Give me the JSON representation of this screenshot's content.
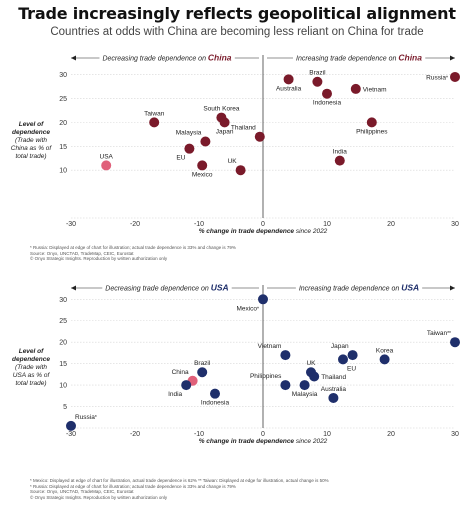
{
  "title": "Trade increasingly reflects geopolitical alignment",
  "subtitle": "Countries at odds with China are becoming less reliant on China for trade",
  "chart_data": [
    {
      "type": "scatter",
      "partner": "China",
      "color": "#7a1a2a",
      "highlight_color": "#e0607a",
      "decreasing_label": "Decreasing trade dependence on ",
      "increasing_label": "Increasing trade dependence on ",
      "xlabel": "% change in trade dependence since 2022",
      "ylabel": [
        "Level of",
        "dependence",
        "(Trade with",
        "China as % of",
        "total trade)"
      ],
      "xlim": [
        -30,
        30
      ],
      "ylim": [
        0,
        32
      ],
      "x_ticks": [
        -30,
        -20,
        -10,
        0,
        10,
        20,
        30
      ],
      "y_ticks": [
        10,
        15,
        20,
        25,
        30
      ],
      "points": [
        {
          "label": "Taiwan",
          "x": -17,
          "y": 20,
          "label_pos": "above"
        },
        {
          "label": "South Korea",
          "x": -6.5,
          "y": 21,
          "label_pos": "above"
        },
        {
          "label": "Malaysia",
          "x": -9,
          "y": 16,
          "label_pos": "above-left"
        },
        {
          "label": "Japan",
          "x": -6,
          "y": 20,
          "label_pos": "below"
        },
        {
          "label": "Thailand",
          "x": -0.5,
          "y": 17,
          "label_pos": "above-left"
        },
        {
          "label": "EU",
          "x": -11.5,
          "y": 14.5,
          "label_pos": "below-left"
        },
        {
          "label": "USA",
          "x": -24.5,
          "y": 11,
          "label_pos": "above",
          "highlight": true
        },
        {
          "label": "Mexico",
          "x": -9.5,
          "y": 11,
          "label_pos": "below"
        },
        {
          "label": "UK",
          "x": -3.5,
          "y": 10,
          "label_pos": "above-left"
        },
        {
          "label": "Australia",
          "x": 4,
          "y": 29,
          "label_pos": "below"
        },
        {
          "label": "Brazil",
          "x": 8.5,
          "y": 28.5,
          "label_pos": "above"
        },
        {
          "label": "Indonesia",
          "x": 10,
          "y": 26,
          "label_pos": "below"
        },
        {
          "label": "Vietnam",
          "x": 14.5,
          "y": 27,
          "label_pos": "right"
        },
        {
          "label": "Russia",
          "x": 30,
          "y": 29.5,
          "label_pos": "left",
          "note_mark": "*"
        },
        {
          "label": "Philippines",
          "x": 17,
          "y": 20,
          "label_pos": "below"
        },
        {
          "label": "India",
          "x": 12,
          "y": 12,
          "label_pos": "above"
        }
      ],
      "footnotes": [
        "* Russia: Displayed at edge of chart for illustration; actual trade dependence is 33% and change is 79%",
        "Source: Onyx, UNCTAD, TradeMap, CEIC, Eurostat",
        "© Onyx Strategic Insights. Reproduction by written authorization only"
      ]
    },
    {
      "type": "scatter",
      "partner": "USA",
      "color": "#1f2f6b",
      "highlight_color": "#e0607a",
      "decreasing_label": "Decreasing trade dependence on ",
      "increasing_label": "Increasing trade dependence on ",
      "xlabel": "% change in trade dependence since 2022",
      "ylabel": [
        "Level of",
        "dependence",
        "(Trade with",
        "USA as % of",
        "total trade)"
      ],
      "xlim": [
        -30,
        30
      ],
      "ylim": [
        0,
        31
      ],
      "x_ticks": [
        -30,
        -20,
        -10,
        0,
        10,
        20,
        30
      ],
      "y_ticks": [
        5,
        10,
        15,
        20,
        25,
        30
      ],
      "points": [
        {
          "label": "Mexico",
          "x": 0,
          "y": 30,
          "label_pos": "below-left",
          "note_mark": "*"
        },
        {
          "label": "Taiwan",
          "x": 30,
          "y": 20,
          "label_pos": "above-left",
          "note_mark": "**"
        },
        {
          "label": "Vietnam",
          "x": 3.5,
          "y": 17,
          "label_pos": "above-left"
        },
        {
          "label": "Japan",
          "x": 14,
          "y": 17,
          "label_pos": "above-left"
        },
        {
          "label": "Korea",
          "x": 19,
          "y": 16,
          "label_pos": "above"
        },
        {
          "label": "EU",
          "x": 12.5,
          "y": 16,
          "label_pos": "below-right"
        },
        {
          "label": "UK",
          "x": 7.5,
          "y": 13,
          "label_pos": "above"
        },
        {
          "label": "Thailand",
          "x": 8,
          "y": 12,
          "label_pos": "right"
        },
        {
          "label": "Philippines",
          "x": 3.5,
          "y": 10,
          "label_pos": "above-left"
        },
        {
          "label": "Malaysia",
          "x": 6.5,
          "y": 10,
          "label_pos": "below"
        },
        {
          "label": "Australia",
          "x": 11,
          "y": 7,
          "label_pos": "above"
        },
        {
          "label": "Brazil",
          "x": -9.5,
          "y": 13,
          "label_pos": "above"
        },
        {
          "label": "China",
          "x": -11,
          "y": 11,
          "label_pos": "above-left",
          "highlight": true
        },
        {
          "label": "India",
          "x": -12,
          "y": 10,
          "label_pos": "below-left"
        },
        {
          "label": "Indonesia",
          "x": -7.5,
          "y": 8,
          "label_pos": "below"
        },
        {
          "label": "Russia",
          "x": -30,
          "y": 0.5,
          "label_pos": "above-right",
          "note_mark": "*"
        }
      ],
      "footnotes": [
        "* Mexico: Displayed at edge of chart for illustration, actual trade dependence is 62% ** Taiwan: Displayed at edge for illustration, actual change is 50%",
        "* Russia: Displayed at edge of chart for illustration; actual trade dependence is 33% and change is 79%",
        "Source: Onyx, UNCTAD, TradeMap, CEIC, Eurostat",
        "© Onyx Strategic Insights. Reproduction by written authorization only"
      ]
    }
  ]
}
